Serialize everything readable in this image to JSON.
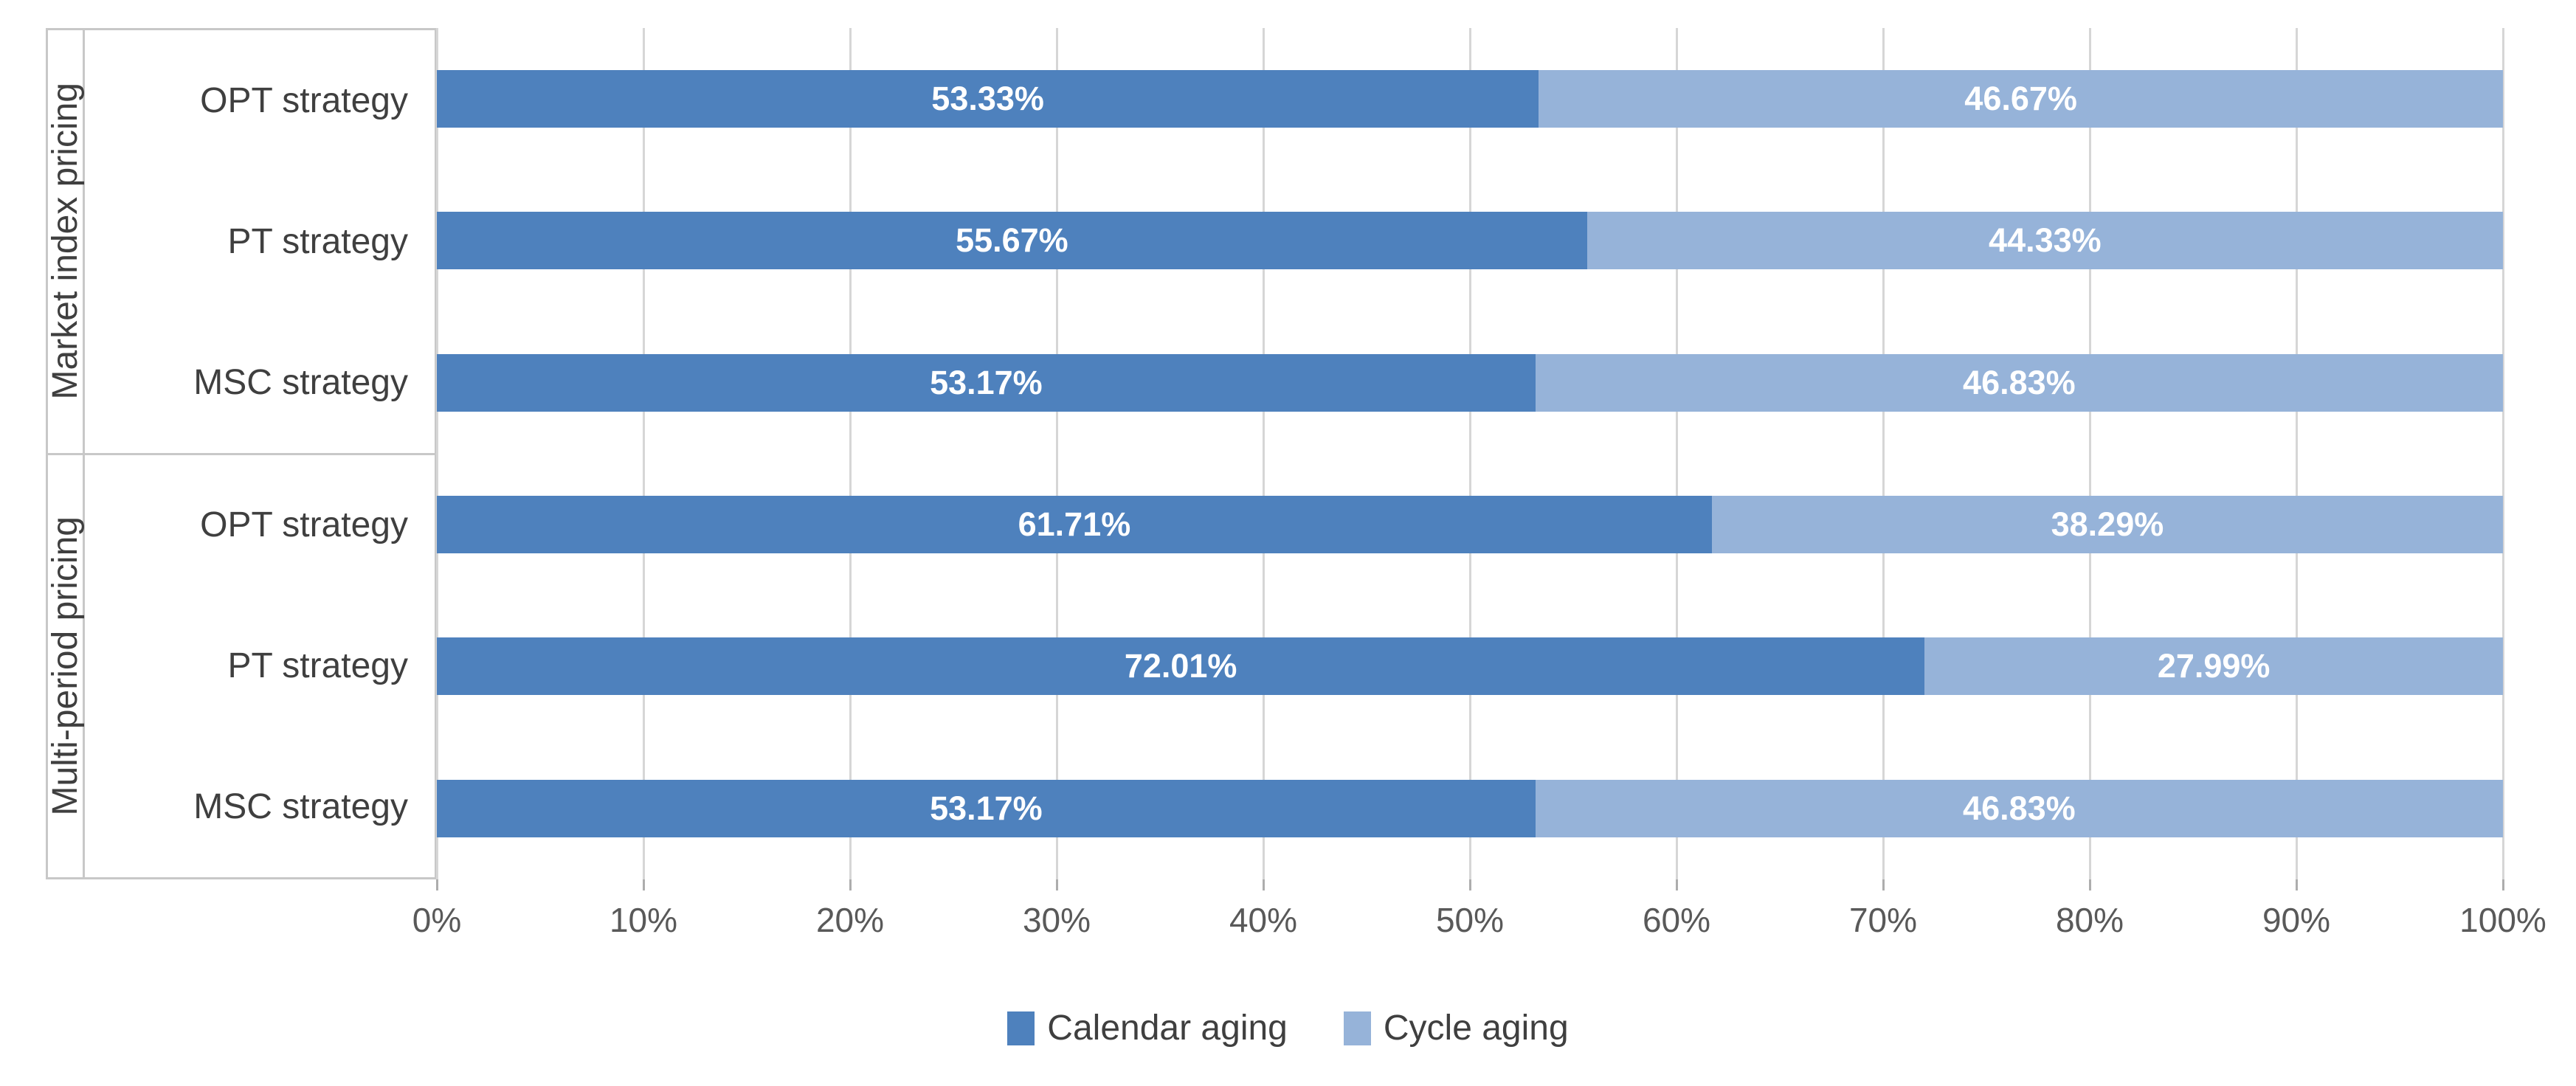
{
  "chart_data": {
    "type": "bar",
    "orientation": "horizontal",
    "stacked": true,
    "unit": "%",
    "xlim": [
      0,
      100
    ],
    "grid": true,
    "legend_position": "bottom",
    "x_tick_labels": [
      "0%",
      "10%",
      "20%",
      "30%",
      "40%",
      "50%",
      "60%",
      "70%",
      "80%",
      "90%",
      "100%"
    ],
    "group_axis": [
      {
        "label": "Market index pricing",
        "categories": [
          "OPT strategy",
          "PT strategy",
          "MSC strategy"
        ]
      },
      {
        "label": "Multi-period pricing",
        "categories": [
          "OPT strategy",
          "PT strategy",
          "MSC strategy"
        ]
      }
    ],
    "categories": [
      "OPT strategy",
      "PT strategy",
      "MSC strategy",
      "OPT strategy",
      "PT strategy",
      "MSC strategy"
    ],
    "series": [
      {
        "name": "Calendar aging",
        "color": "#4E81BD",
        "values": [
          53.33,
          55.67,
          53.17,
          61.71,
          72.01,
          53.17
        ],
        "labels": [
          "53.33%",
          "55.67%",
          "53.17%",
          "61.71%",
          "72.01%",
          "53.17%"
        ]
      },
      {
        "name": "Cycle aging",
        "color": "#96B3D9",
        "values": [
          46.67,
          44.33,
          46.83,
          38.29,
          27.99,
          46.83
        ],
        "labels": [
          "46.67%",
          "44.33%",
          "46.83%",
          "38.29%",
          "27.99%",
          "46.83%"
        ]
      }
    ],
    "colors": {
      "gridline": "#D6D6D6",
      "panel_border": "#C8C8C8",
      "tick": "#ADADAD",
      "axis_text": "#595959",
      "category_text": "#3F3F3F",
      "value_label_text": "#FFFFFF"
    }
  }
}
